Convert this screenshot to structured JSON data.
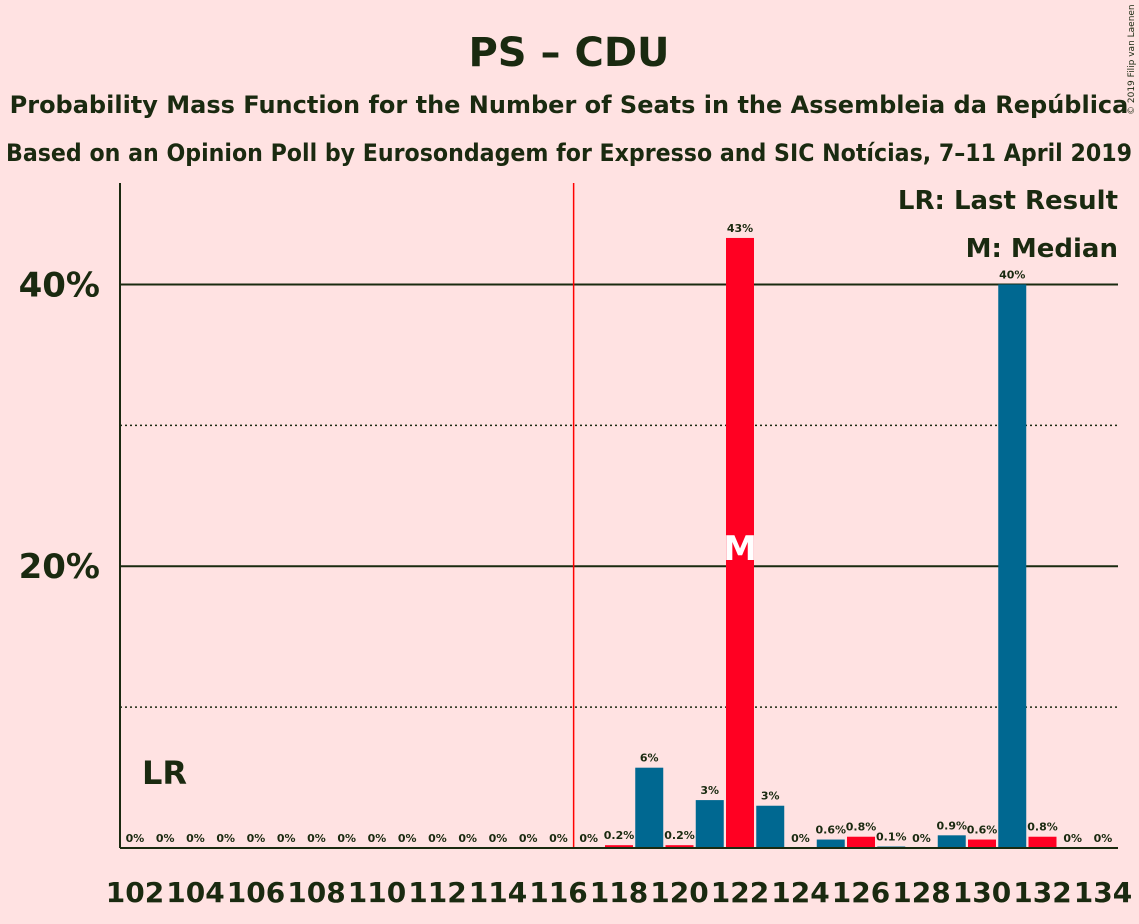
{
  "chart_data": {
    "type": "bar",
    "title": "PS – CDU",
    "subtitle": "Probability Mass Function for the Number of Seats in the Assembleia da República",
    "subtitle2": "Based on an Opinion Poll by Eurosondagem for Expresso and SIC Notícias, 7–11 April 2019",
    "copyright": "© 2019 Filip van Laenen",
    "legend": {
      "last_result": "LR: Last Result",
      "median": "M: Median"
    },
    "lr_label": "LR",
    "median_label": "M",
    "majority_line_seats": 116,
    "ylim": [
      0,
      47.2
    ],
    "yticks": [
      {
        "value": 20,
        "label": "20%"
      },
      {
        "value": 40,
        "label": "40%"
      }
    ],
    "ygrid_minor": [
      10,
      30
    ],
    "xtick_labels": [
      "102",
      "104",
      "106",
      "108",
      "110",
      "112",
      "114",
      "116",
      "118",
      "120",
      "122",
      "124",
      "126",
      "128",
      "130",
      "132",
      "134"
    ],
    "colors": {
      "ps": "#FF0022",
      "cdu": "#006891",
      "majority": "#FF0000",
      "text": "#1a2a10",
      "background": "#FFE2E2"
    },
    "series": [
      {
        "name": "PS",
        "color": "#FF0022"
      },
      {
        "name": "CDU",
        "color": "#006891"
      }
    ],
    "bars": [
      {
        "seats": 102,
        "value": 0,
        "label": "0%",
        "series": "CDU"
      },
      {
        "seats": 103,
        "value": 0,
        "label": "0%",
        "series": "PS"
      },
      {
        "seats": 104,
        "value": 0,
        "label": "0%",
        "series": "CDU"
      },
      {
        "seats": 105,
        "value": 0,
        "label": "0%",
        "series": "PS"
      },
      {
        "seats": 106,
        "value": 0,
        "label": "0%",
        "series": "CDU"
      },
      {
        "seats": 107,
        "value": 0,
        "label": "0%",
        "series": "PS"
      },
      {
        "seats": 108,
        "value": 0,
        "label": "0%",
        "series": "CDU"
      },
      {
        "seats": 109,
        "value": 0,
        "label": "0%",
        "series": "PS"
      },
      {
        "seats": 110,
        "value": 0,
        "label": "0%",
        "series": "CDU"
      },
      {
        "seats": 111,
        "value": 0,
        "label": "0%",
        "series": "PS"
      },
      {
        "seats": 112,
        "value": 0,
        "label": "0%",
        "series": "CDU"
      },
      {
        "seats": 113,
        "value": 0,
        "label": "0%",
        "series": "PS"
      },
      {
        "seats": 114,
        "value": 0,
        "label": "0%",
        "series": "CDU"
      },
      {
        "seats": 115,
        "value": 0,
        "label": "0%",
        "series": "PS"
      },
      {
        "seats": 116,
        "value": 0,
        "label": "0%",
        "series": "CDU"
      },
      {
        "seats": 117,
        "value": 0,
        "label": "0%",
        "series": "PS"
      },
      {
        "seats": 118,
        "value": 0.2,
        "label": "0.2%",
        "series": "PS"
      },
      {
        "seats": 119,
        "value": 5.7,
        "label": "6%",
        "series": "CDU"
      },
      {
        "seats": 120,
        "value": 0.2,
        "label": "0.2%",
        "series": "PS"
      },
      {
        "seats": 121,
        "value": 3.4,
        "label": "3%",
        "series": "CDU"
      },
      {
        "seats": 122,
        "value": 43.3,
        "label": "43%",
        "series": "PS",
        "median": true
      },
      {
        "seats": 123,
        "value": 3.0,
        "label": "3%",
        "series": "CDU"
      },
      {
        "seats": 124,
        "value": 0,
        "label": "0%",
        "series": "PS"
      },
      {
        "seats": 125,
        "value": 0.6,
        "label": "0.6%",
        "series": "CDU"
      },
      {
        "seats": 126,
        "value": 0.8,
        "label": "0.8%",
        "series": "PS"
      },
      {
        "seats": 127,
        "value": 0.1,
        "label": "0.1%",
        "series": "CDU"
      },
      {
        "seats": 128,
        "value": 0,
        "label": "0%",
        "series": "PS"
      },
      {
        "seats": 129,
        "value": 0.9,
        "label": "0.9%",
        "series": "CDU"
      },
      {
        "seats": 130,
        "value": 0.6,
        "label": "0.6%",
        "series": "PS"
      },
      {
        "seats": 131,
        "value": 40.0,
        "label": "40%",
        "series": "CDU"
      },
      {
        "seats": 132,
        "value": 0.8,
        "label": "0.8%",
        "series": "PS"
      },
      {
        "seats": 133,
        "value": 0,
        "label": "0%",
        "series": "CDU"
      },
      {
        "seats": 134,
        "value": 0,
        "label": "0%",
        "series": "PS"
      }
    ]
  }
}
